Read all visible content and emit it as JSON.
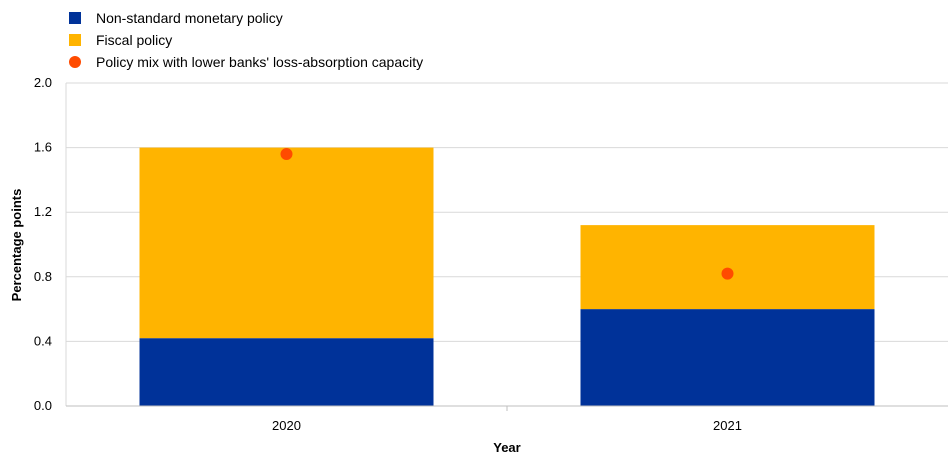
{
  "chart_data": {
    "type": "bar",
    "stacked": true,
    "categories": [
      "2020",
      "2021"
    ],
    "series": [
      {
        "name": "Non-standard monetary policy",
        "values": [
          0.42,
          0.6
        ],
        "color": "#003299"
      },
      {
        "name": "Fiscal policy",
        "values": [
          1.18,
          0.52
        ],
        "color": "#FFB400"
      }
    ],
    "points": {
      "name": "Policy mix with lower banks' loss-absorption capacity",
      "values": [
        1.56,
        0.82
      ],
      "color": "#FF4B00"
    },
    "xlabel": "Year",
    "ylabel": "Percentage points",
    "ylim": [
      0,
      2.0
    ],
    "yticks": [
      "0.0",
      "0.4",
      "0.8",
      "1.2",
      "1.6",
      "2.0"
    ],
    "grid": true,
    "legend_position": "top-left"
  }
}
